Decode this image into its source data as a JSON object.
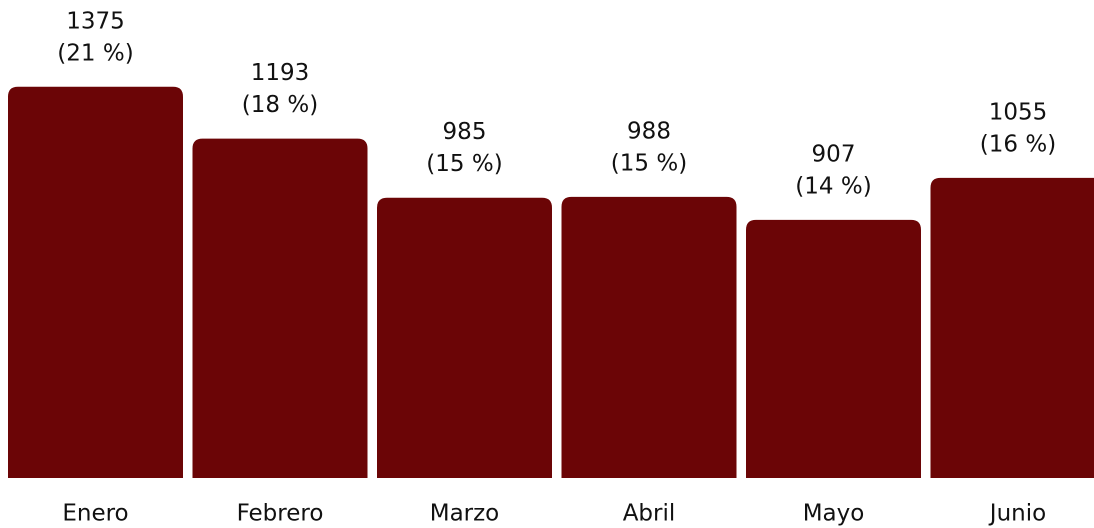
{
  "chart_data": {
    "type": "bar",
    "categories": [
      "Enero",
      "Febrero",
      "Marzo",
      "Abril",
      "Mayo",
      "Junio"
    ],
    "values": [
      1375,
      1193,
      985,
      988,
      907,
      1055
    ],
    "shares": [
      21,
      18,
      15,
      15,
      14,
      16
    ],
    "share_labels": [
      "(21 %)",
      "(18 %)",
      "(15 %)",
      "(15 %)",
      "(14 %)",
      "(16 %)"
    ],
    "color": "#6b0506",
    "ylim": [
      0,
      1680
    ]
  }
}
